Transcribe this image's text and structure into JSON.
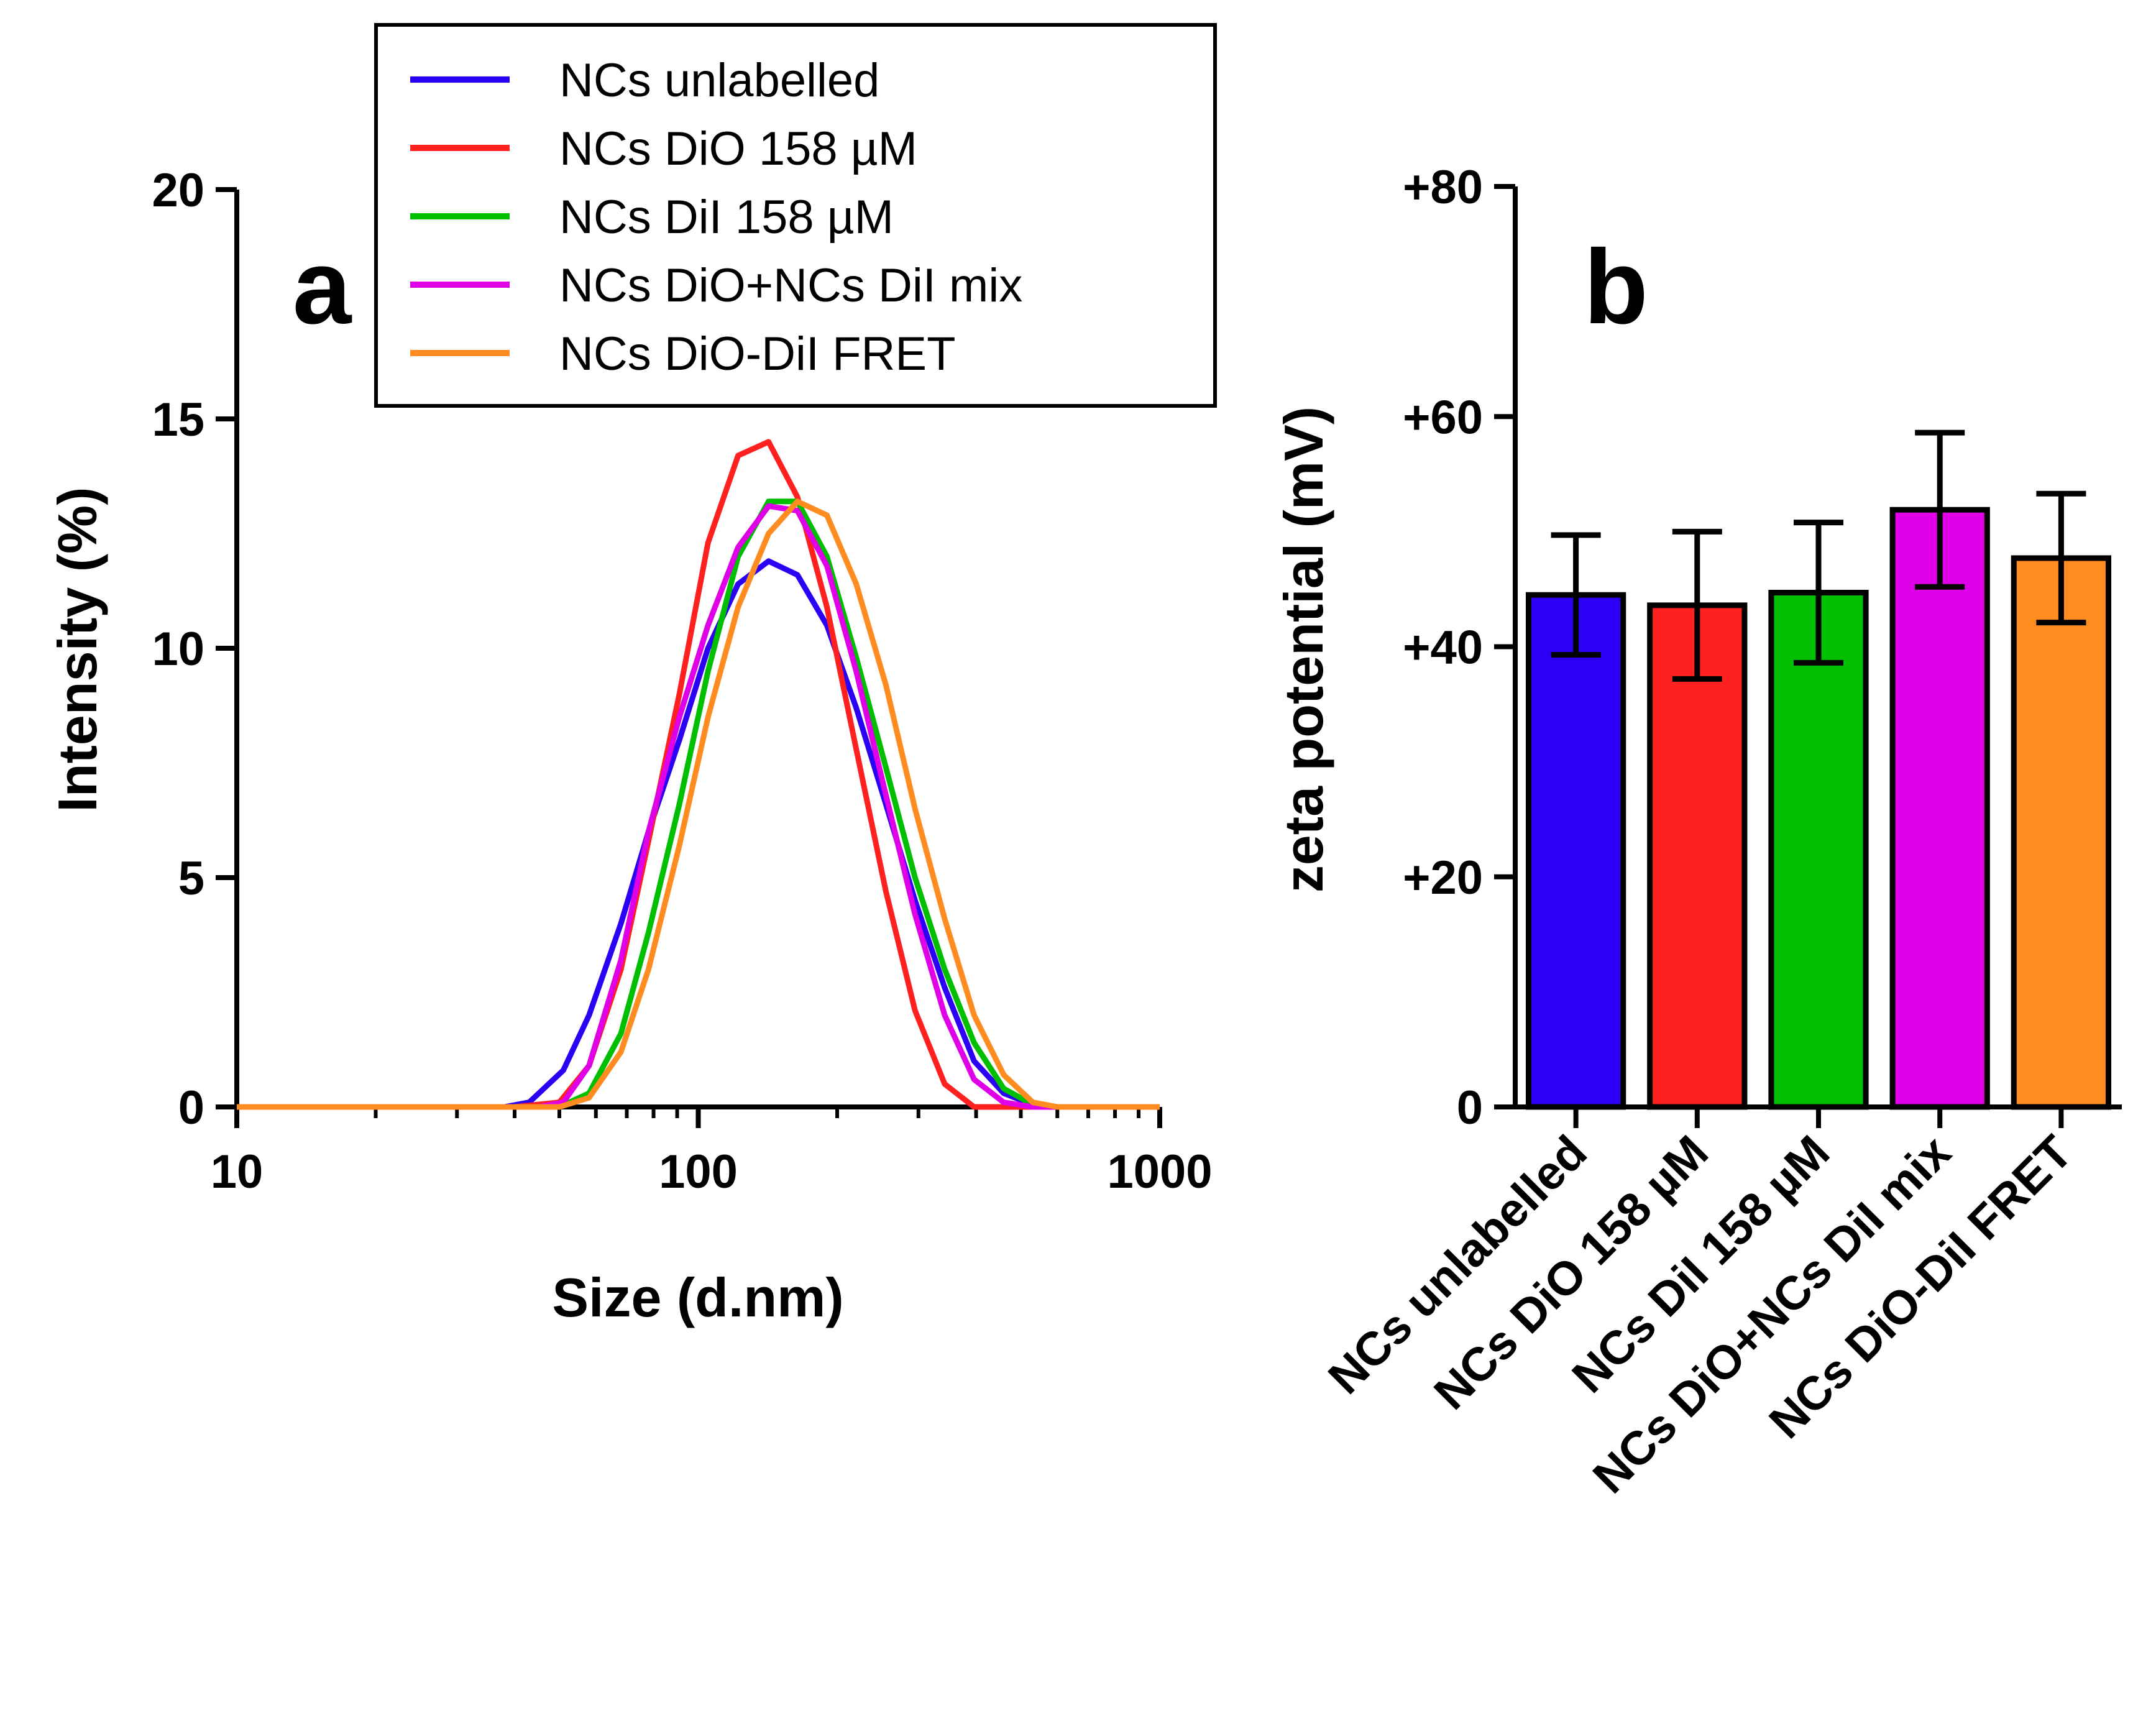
{
  "figure": {
    "panel_a_label": "a",
    "panel_b_label": "b"
  },
  "chart_data": [
    {
      "type": "line",
      "panel": "a",
      "title": "",
      "xlabel": "Size (d.nm)",
      "ylabel": "Intensity (%)",
      "xscale": "log",
      "xlim": [
        10,
        1000
      ],
      "ylim": [
        0,
        20
      ],
      "xticks": [
        "10",
        "100",
        "1000"
      ],
      "yticks": [
        "0",
        "5",
        "10",
        "15",
        "20"
      ],
      "legend_position": "top-right",
      "series": [
        {
          "name": "NCs unlabelled",
          "color": "#2b00f5",
          "points": [
            [
              10,
              0
            ],
            [
              30,
              0
            ],
            [
              38,
              0
            ],
            [
              43,
              0.1
            ],
            [
              51,
              0.8
            ],
            [
              58,
              2.0
            ],
            [
              68,
              4.0
            ],
            [
              78,
              6.0
            ],
            [
              91,
              8.0
            ],
            [
              105,
              10.0
            ],
            [
              122,
              11.4
            ],
            [
              142,
              11.9
            ],
            [
              164,
              11.6
            ],
            [
              190,
              10.5
            ],
            [
              220,
              8.7
            ],
            [
              255,
              6.6
            ],
            [
              295,
              4.5
            ],
            [
              342,
              2.6
            ],
            [
              396,
              1.0
            ],
            [
              459,
              0.3
            ],
            [
              531,
              0.05
            ],
            [
              600,
              0
            ],
            [
              1000,
              0
            ]
          ]
        },
        {
          "name": "NCs DiO 158 µM",
          "color": "#ff2020",
          "points": [
            [
              10,
              0
            ],
            [
              40,
              0
            ],
            [
              50,
              0.1
            ],
            [
              58,
              0.9
            ],
            [
              68,
              3.0
            ],
            [
              78,
              5.8
            ],
            [
              91,
              9.0
            ],
            [
              105,
              12.3
            ],
            [
              122,
              14.2
            ],
            [
              142,
              14.5
            ],
            [
              164,
              13.3
            ],
            [
              190,
              10.9
            ],
            [
              220,
              7.8
            ],
            [
              255,
              4.7
            ],
            [
              295,
              2.1
            ],
            [
              342,
              0.5
            ],
            [
              396,
              0
            ],
            [
              1000,
              0
            ]
          ]
        },
        {
          "name": "NCs DiI 158 µM",
          "color": "#00bf00",
          "points": [
            [
              10,
              0
            ],
            [
              50,
              0
            ],
            [
              58,
              0.3
            ],
            [
              68,
              1.6
            ],
            [
              78,
              3.8
            ],
            [
              91,
              6.6
            ],
            [
              105,
              9.5
            ],
            [
              122,
              12.0
            ],
            [
              142,
              13.2
            ],
            [
              164,
              13.2
            ],
            [
              190,
              12.0
            ],
            [
              220,
              9.8
            ],
            [
              255,
              7.4
            ],
            [
              295,
              5.0
            ],
            [
              342,
              3.0
            ],
            [
              396,
              1.4
            ],
            [
              459,
              0.4
            ],
            [
              531,
              0.05
            ],
            [
              600,
              0
            ],
            [
              1000,
              0
            ]
          ]
        },
        {
          "name": "NCs DiO+NCs DiI mix",
          "color": "#e000e8",
          "points": [
            [
              10,
              0
            ],
            [
              45,
              0
            ],
            [
              51,
              0.1
            ],
            [
              58,
              0.9
            ],
            [
              68,
              3.2
            ],
            [
              78,
              6.0
            ],
            [
              91,
              8.5
            ],
            [
              105,
              10.5
            ],
            [
              122,
              12.2
            ],
            [
              142,
              13.1
            ],
            [
              164,
              13.0
            ],
            [
              190,
              11.8
            ],
            [
              220,
              9.5
            ],
            [
              255,
              6.8
            ],
            [
              295,
              4.2
            ],
            [
              342,
              2.0
            ],
            [
              396,
              0.6
            ],
            [
              459,
              0.1
            ],
            [
              531,
              0
            ],
            [
              1000,
              0
            ]
          ]
        },
        {
          "name": "NCs DiO-DiI FRET",
          "color": "#ff8c20",
          "points": [
            [
              10,
              0
            ],
            [
              50,
              0
            ],
            [
              58,
              0.2
            ],
            [
              68,
              1.2
            ],
            [
              78,
              3.0
            ],
            [
              91,
              5.7
            ],
            [
              105,
              8.5
            ],
            [
              122,
              10.9
            ],
            [
              142,
              12.5
            ],
            [
              164,
              13.2
            ],
            [
              190,
              12.9
            ],
            [
              220,
              11.4
            ],
            [
              255,
              9.2
            ],
            [
              295,
              6.5
            ],
            [
              342,
              4.1
            ],
            [
              396,
              2.0
            ],
            [
              459,
              0.7
            ],
            [
              531,
              0.1
            ],
            [
              600,
              0
            ],
            [
              1000,
              0
            ]
          ]
        }
      ]
    },
    {
      "type": "bar",
      "panel": "b",
      "title": "",
      "xlabel": "",
      "ylabel": "zeta potential (mV)",
      "ylim": [
        0,
        80
      ],
      "yticks": [
        "0",
        "+20",
        "+40",
        "+60",
        "+80"
      ],
      "categories": [
        "NCs unlabelled",
        "NCs DiO 158 µM",
        "NCs DiI 158 µM",
        "NCs DiO+NCs DiI mix",
        "NCs DiO-DiI FRET"
      ],
      "values": [
        44.5,
        43.6,
        44.7,
        51.9,
        47.7
      ],
      "errors": [
        5.2,
        6.4,
        6.1,
        6.7,
        5.6
      ],
      "colors": [
        "#2b00f5",
        "#ff2020",
        "#00bf00",
        "#e000e8",
        "#ff8c20"
      ]
    }
  ]
}
